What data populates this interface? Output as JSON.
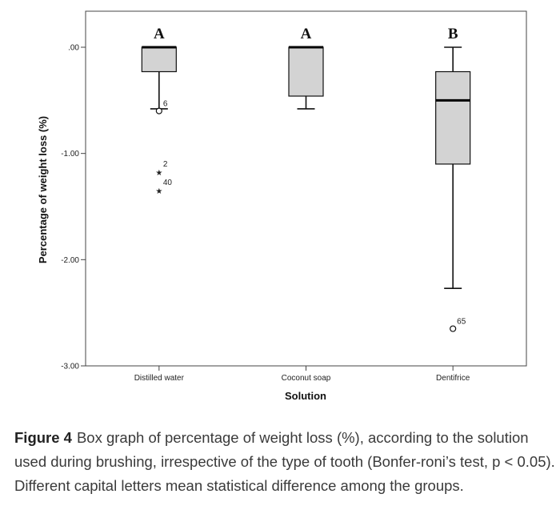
{
  "chart_data": {
    "type": "box",
    "ylabel": "Percentage of weight loss (%)",
    "xlabel": "Solution",
    "ylim": [
      -3.0,
      0.33
    ],
    "y_ticks": [
      {
        "value": 0.0,
        "label": ".00"
      },
      {
        "value": -1.0,
        "label": "-1.00"
      },
      {
        "value": -2.0,
        "label": "-2.00"
      },
      {
        "value": -3.0,
        "label": "-3.00"
      }
    ],
    "categories": [
      "Distilled water",
      "Coconut soap",
      "Dentifrice"
    ],
    "groups": [
      {
        "name": "Distilled water",
        "letter": "A",
        "whisker_low": -0.58,
        "q1": -0.23,
        "median": 0.0,
        "q3": 0.0,
        "whisker_high": 0.0,
        "outliers": [
          {
            "value": -0.6,
            "marker": "circle",
            "label": "6"
          }
        ],
        "extremes": [
          {
            "value": -1.17,
            "marker": "star",
            "label": "2"
          },
          {
            "value": -1.34,
            "marker": "star",
            "label": "40"
          }
        ]
      },
      {
        "name": "Coconut soap",
        "letter": "A",
        "whisker_low": -0.58,
        "q1": -0.46,
        "median": 0.0,
        "q3": 0.0,
        "whisker_high": 0.0,
        "outliers": [],
        "extremes": []
      },
      {
        "name": "Dentifrice",
        "letter": "B",
        "whisker_low": -2.27,
        "q1": -1.1,
        "median": -0.5,
        "q3": -0.23,
        "whisker_high": 0.0,
        "outliers": [
          {
            "value": -2.65,
            "marker": "circle",
            "label": "65"
          }
        ],
        "extremes": []
      }
    ]
  },
  "caption": {
    "label": "Figure 4",
    "text": "Box graph of percentage of weight loss (%), according to the solution used during brushing, irrespective of the type of tooth (Bonfer-roni’s test, p < 0.05). Different capital letters mean statistical difference among the groups."
  }
}
